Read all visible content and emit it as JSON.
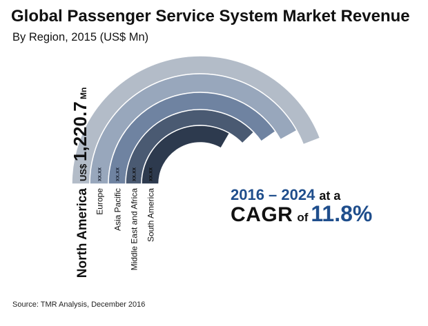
{
  "title": "Global Passenger Service System Market Revenue",
  "subtitle": "By Region, 2015 (US$ Mn)",
  "chart_data": {
    "type": "radial-bar",
    "categories": [
      "North America",
      "Europe",
      "Asia Pacific",
      "Middle East and Africa",
      "South America"
    ],
    "values": [
      1220.7,
      null,
      null,
      null,
      null
    ],
    "value_labels": [
      "1,220.7",
      "xx.xx",
      "xx.xx",
      "xx.xx",
      "xx.xx"
    ],
    "value_prefix": "US$",
    "value_unit": "Mn",
    "colors": [
      "#b3bcc8",
      "#98a7bc",
      "#6f83a1",
      "#4a5a72",
      "#2d3a4e"
    ]
  },
  "cagr": {
    "period": "2016 – 2024",
    "at_a": "at a",
    "label": "CAGR",
    "of": "of",
    "value": "11.8%"
  },
  "source": "Source: TMR Analysis, December 2016"
}
